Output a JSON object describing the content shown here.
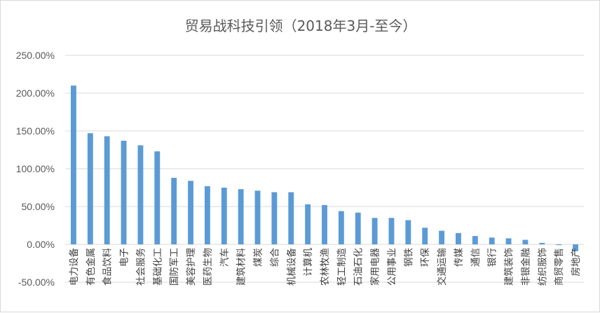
{
  "chart_data": {
    "type": "bar",
    "title": "贸易战科技引领（2018年3月-至今）",
    "xlabel": "",
    "ylabel": "",
    "ylim": [
      -50,
      250
    ],
    "yticks": [
      "250.00%",
      "200.00%",
      "150.00%",
      "100.00%",
      "50.00%",
      "0.00%",
      "-50.00%"
    ],
    "grid": true,
    "legend": "none",
    "color": "#5b9bd5",
    "categories": [
      "电力设备",
      "有色金属",
      "食品饮料",
      "电子",
      "社会服务",
      "基础化工",
      "国防军工",
      "美容护理",
      "医药生物",
      "汽车",
      "建筑材料",
      "煤炭",
      "综合",
      "机械设备",
      "计算机",
      "农林牧渔",
      "轻工制造",
      "石油石化",
      "家用电器",
      "公用事业",
      "钢铁",
      "环保",
      "交通运输",
      "传媒",
      "通信",
      "银行",
      "建筑装饰",
      "非银金融",
      "纺织服饰",
      "商贸零售",
      "房地产"
    ],
    "values": [
      210,
      147,
      143,
      137,
      131,
      123,
      88,
      84,
      77,
      75,
      73,
      71,
      69,
      69,
      53,
      52,
      44,
      42,
      35,
      35,
      32,
      22,
      18,
      15,
      11,
      9,
      8,
      6,
      2,
      -1,
      -9
    ]
  }
}
